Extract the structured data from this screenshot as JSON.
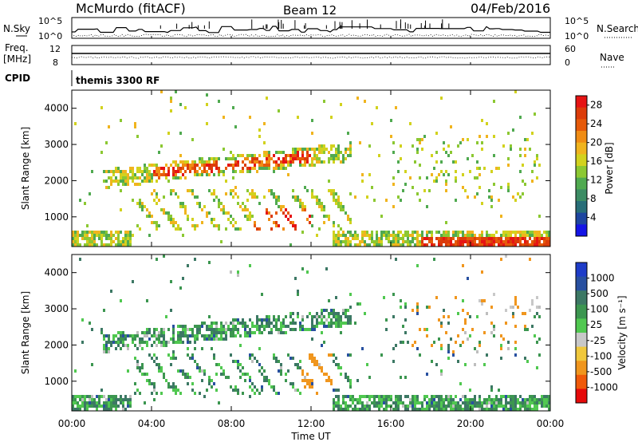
{
  "header": {
    "station": "McMurdo (fitACF)",
    "beam": "Beam 12",
    "date": "04/Feb/2016"
  },
  "panel_labels": {
    "nsky": "N.Sky",
    "nsearch": "N.Search",
    "freq_line1": "Freq.",
    "freq_line2": "[MHz]",
    "nave": "Nave",
    "cpid": "CPID",
    "cpid_value": "themis 3300 RF"
  },
  "colors": {
    "power_scale": [
      "#1414e6",
      "#1e46a0",
      "#286e78",
      "#3c8c64",
      "#50aa50",
      "#8cc832",
      "#d2d21e",
      "#f0b41e",
      "#f08c14",
      "#e65a0a",
      "#dc3c0a",
      "#e61414"
    ],
    "velocity_scale": [
      "#e60a0a",
      "#f05a0a",
      "#f0961e",
      "#f0c83c",
      "#c8c8c8",
      "#50c850",
      "#3c9650",
      "#3c7864",
      "#2850a0",
      "#1e3cc8"
    ],
    "ground_scatter": "#bebebe"
  },
  "chart_data": [
    {
      "type": "line",
      "name": "nsky-nsearch-panel",
      "ylabel_left": "N.Sky",
      "ylabel_right": "N.Search",
      "left_ticks": [
        "10^5",
        "10^0"
      ],
      "right_ticks": [
        "10^5",
        "10^0"
      ],
      "log_scale": true,
      "x_range": [
        "00:00",
        "24:00"
      ]
    },
    {
      "type": "line",
      "name": "freq-nave-panel",
      "ylabel_left": "Freq. [MHz]",
      "ylabel_right": "Nave",
      "left_ticks": [
        12,
        8
      ],
      "right_ticks": [
        60,
        0
      ],
      "left_range": [
        8,
        12
      ],
      "right_range": [
        0,
        60
      ],
      "x_range": [
        "00:00",
        "24:00"
      ]
    },
    {
      "type": "heatmap",
      "name": "power",
      "ylabel": "Slant Range [km]",
      "y_ticks": [
        1000,
        2000,
        3000,
        4000
      ],
      "y_range": [
        180,
        4500
      ],
      "x_range_hours": [
        0,
        24
      ],
      "colorbar": {
        "label": "Power [dB]",
        "ticks": [
          4,
          8,
          12,
          16,
          20,
          24,
          28
        ],
        "range": [
          0,
          30
        ]
      }
    },
    {
      "type": "heatmap",
      "name": "velocity",
      "ylabel": "Slant Range [km]",
      "y_ticks": [
        1000,
        2000,
        3000,
        4000
      ],
      "y_range": [
        180,
        4500
      ],
      "x_range_hours": [
        0,
        24
      ],
      "colorbar": {
        "label": "Velocity [m s⁻¹]",
        "ticks": [
          -1000,
          -500,
          -100,
          -25,
          25,
          100,
          500,
          1000
        ]
      }
    }
  ],
  "x_axis": {
    "label": "Time UT",
    "ticks": [
      "00:00",
      "04:00",
      "08:00",
      "12:00",
      "16:00",
      "20:00",
      "00:00"
    ]
  }
}
